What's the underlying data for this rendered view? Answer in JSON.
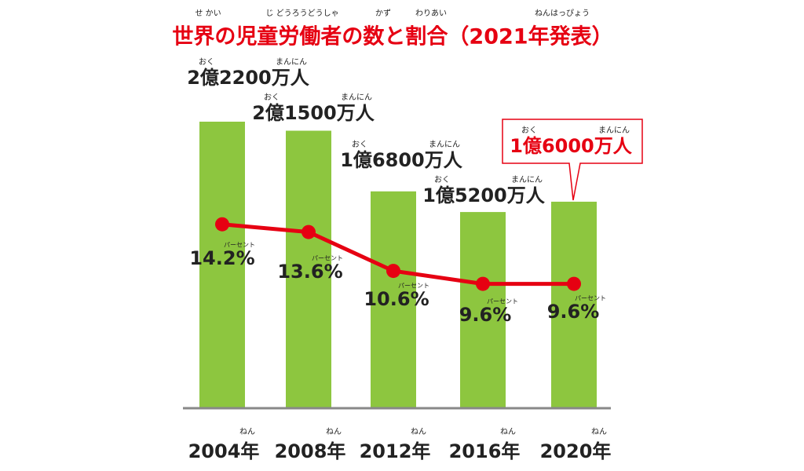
{
  "chart_data": {
    "type": "bar",
    "title": "世界の児童労働者の数と割合（2021年発表）",
    "title_ruby": [
      "せ かい",
      "じ どうろうどうしゃ",
      "かず",
      "わりあい",
      "ねんはっぴょう"
    ],
    "title_color": "#e60012",
    "categories": [
      "2004年",
      "2008年",
      "2012年",
      "2016年",
      "2020年"
    ],
    "category_ruby": [
      "ねん",
      "ねん",
      "ねん",
      "ねん",
      "ねん"
    ],
    "color": "#8dc63f",
    "values": [
      222000000,
      215000000,
      168000000,
      152000000,
      160000000
    ],
    "value_labels": [
      "2億2200万人",
      "2億1500万人",
      "1億6800万人",
      "1億5200万人",
      "1億6000万人"
    ],
    "value_ruby": [
      [
        "おく",
        "まんにん"
      ],
      [
        "おく",
        "まんにん"
      ],
      [
        "おく",
        "まんにん"
      ],
      [
        "おく",
        "まんにん"
      ],
      [
        "おく",
        "まんにん"
      ]
    ],
    "highlight": 4,
    "highlight_color": "#e60012",
    "line": {
      "type": "line",
      "color": "#e60012",
      "values": [
        14.2,
        13.6,
        10.6,
        9.6,
        9.6
      ],
      "value_labels": [
        "14.2%",
        "13.6%",
        "10.6%",
        "9.6%",
        "9.6%"
      ],
      "value_ruby": [
        "パーセント",
        "パーセント",
        "パーセント",
        "パーセント",
        "パーセント"
      ]
    }
  }
}
